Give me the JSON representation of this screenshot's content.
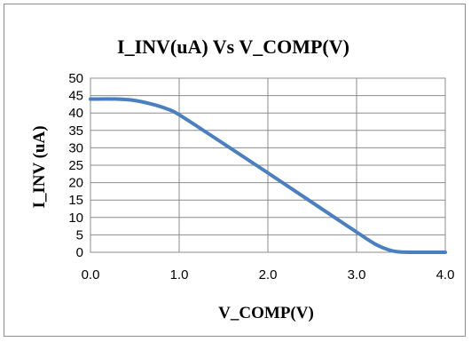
{
  "chart_data": {
    "type": "line",
    "title": "I_INV(uA) Vs V_COMP(V)",
    "xlabel": "V_COMP(V)",
    "ylabel": "I_INV (uA)",
    "xlim": [
      0,
      4
    ],
    "ylim": [
      0,
      50
    ],
    "xticks": [
      "0.0",
      "1.0",
      "2.0",
      "3.0",
      "4.0"
    ],
    "yticks": [
      "0",
      "5",
      "10",
      "15",
      "20",
      "25",
      "30",
      "35",
      "40",
      "45",
      "50"
    ],
    "grid": true,
    "legend": "none",
    "color": "#4a7fc1",
    "series": [
      {
        "x": [
          0.0,
          0.3,
          0.5,
          0.7,
          0.85,
          1.0,
          1.5,
          2.0,
          2.5,
          3.0,
          3.2,
          3.35,
          3.45,
          3.6,
          3.8,
          4.0
        ],
        "y": [
          44.0,
          44.0,
          43.6,
          42.5,
          41.3,
          39.5,
          31.2,
          22.8,
          14.3,
          5.8,
          2.5,
          0.8,
          0.2,
          0.0,
          0.0,
          0.0
        ]
      }
    ]
  }
}
